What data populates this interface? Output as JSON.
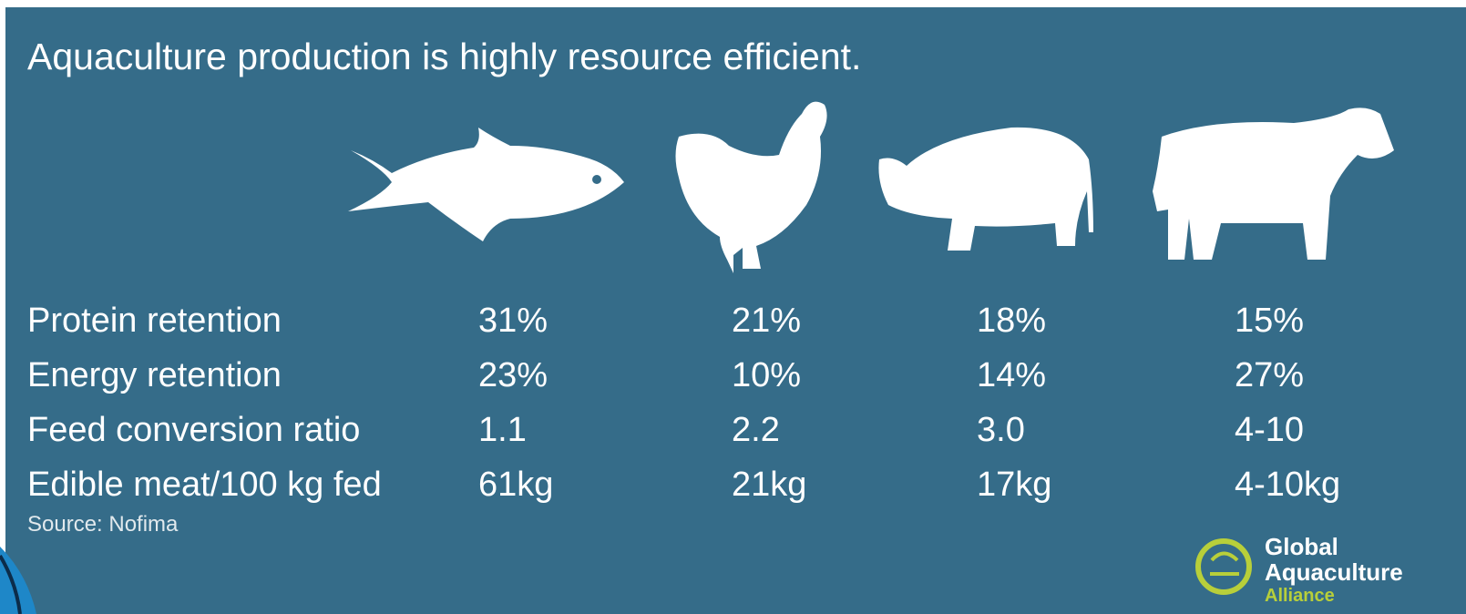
{
  "title": "Aquaculture production is highly resource efficient.",
  "table": {
    "rows": [
      {
        "label": "Protein retention",
        "cells": [
          "31%",
          "21%",
          "18%",
          "15%"
        ]
      },
      {
        "label": "Energy retention",
        "cells": [
          "23%",
          "10%",
          "14%",
          "27%"
        ]
      },
      {
        "label": "Feed conversion ratio",
        "cells": [
          "1.1",
          "2.2",
          "3.0",
          "4-10"
        ]
      },
      {
        "label": "Edible meat/100 kg fed",
        "cells": [
          "61kg",
          "21kg",
          "17kg",
          "4-10kg"
        ]
      }
    ]
  },
  "source": "Source: Nofima",
  "logo": {
    "lines": [
      "Global",
      "Aquaculture",
      "Alliance"
    ]
  }
}
